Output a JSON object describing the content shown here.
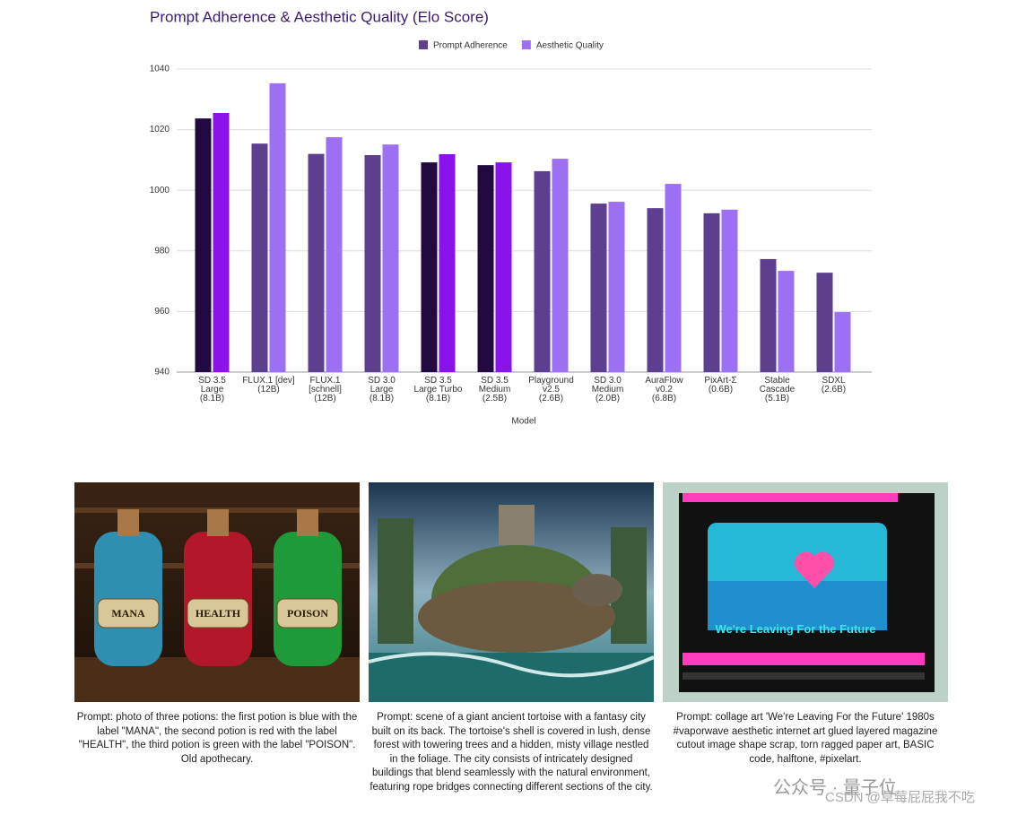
{
  "chart_data": {
    "type": "bar",
    "title": "Prompt Adherence & Aesthetic Quality (Elo Score)",
    "x_label": "Model",
    "categories": [
      "SD 3.5\nLarge\n(8.1B)",
      "FLUX.1 [dev]\n(12B)",
      "FLUX.1\n[schnell]\n(12B)",
      "SD 3.0\nLarge\n(8.1B)",
      "SD 3.5\nLarge Turbo\n(8.1B)",
      "SD 3.5\nMedium\n(2.5B)",
      "Playground\nv2.5\n(2.6B)",
      "SD 3.0\nMedium\n(2.0B)",
      "AuraFlow\nv0.2\n(6.8B)",
      "PixArt-Σ\n(0.6B)",
      "Stable\nCascade\n(5.1B)",
      "SDXL\n(2.6B)"
    ],
    "series": [
      {
        "name": "Prompt Adherence",
        "color": "#5e3f8f",
        "bar_colors": [
          "#22093f",
          "#5e3f8f",
          "#5e3f8f",
          "#5e3f8f",
          "#22093f",
          "#22093f",
          "#5e3f8f",
          "#5e3f8f",
          "#5e3f8f",
          "#5e3f8f",
          "#5e3f8f",
          "#5e3f8f"
        ],
        "values": [
          1023.7,
          1015.4,
          1012,
          1011.6,
          1009.2,
          1008.3,
          1006.3,
          995.6,
          994.1,
          992.4,
          977.3,
          972.8
        ]
      },
      {
        "name": "Aesthetic Quality",
        "color": "#9d6ff2",
        "bar_colors": [
          "#8a12ea",
          "#9d6ff2",
          "#9d6ff2",
          "#9d6ff2",
          "#8a12ea",
          "#8a12ea",
          "#9d6ff2",
          "#9d6ff2",
          "#9d6ff2",
          "#9d6ff2",
          "#9d6ff2",
          "#9d6ff2"
        ],
        "values": [
          1025.5,
          1035.3,
          1017.5,
          1015.1,
          1011.9,
          1009.2,
          1010.4,
          996.2,
          1002.1,
          993.6,
          973.4,
          959.8
        ]
      }
    ],
    "ylim": [
      940,
      1040
    ],
    "yticks": [
      940,
      960,
      980,
      1000,
      1020,
      1040
    ],
    "grid": true,
    "legend": "top"
  },
  "figures": [
    {
      "labels": [
        "MANA",
        "HEALTH",
        "POISON"
      ],
      "caption": "Prompt: photo of three potions: the first potion is blue with the label \"MANA\", the second potion is red with the label \"HEALTH\", the third potion is green with the label \"POISON\". Old apothecary."
    },
    {
      "caption": "Prompt: scene of a giant ancient tortoise with a fantasy city built on its back. The tortoise's shell is covered in lush, dense forest with towering trees and a hidden, misty village nestled in the foliage. The city consists of intricately designed buildings that blend seamlessly with the natural environment, featuring rope bridges connecting different sections of the city."
    },
    {
      "labels": [
        "We're Leaving For the Future"
      ],
      "caption": "Prompt: collage art 'We're Leaving For the Future' 1980s #vaporwave aesthetic internet art glued layered magazine cutout image shape scrap, torn ragged paper art, BASIC code, halftone, #pixelart."
    }
  ],
  "watermark": [
    "公众号 · 量子位",
    "CSDN @草莓屁屁我不吃"
  ]
}
